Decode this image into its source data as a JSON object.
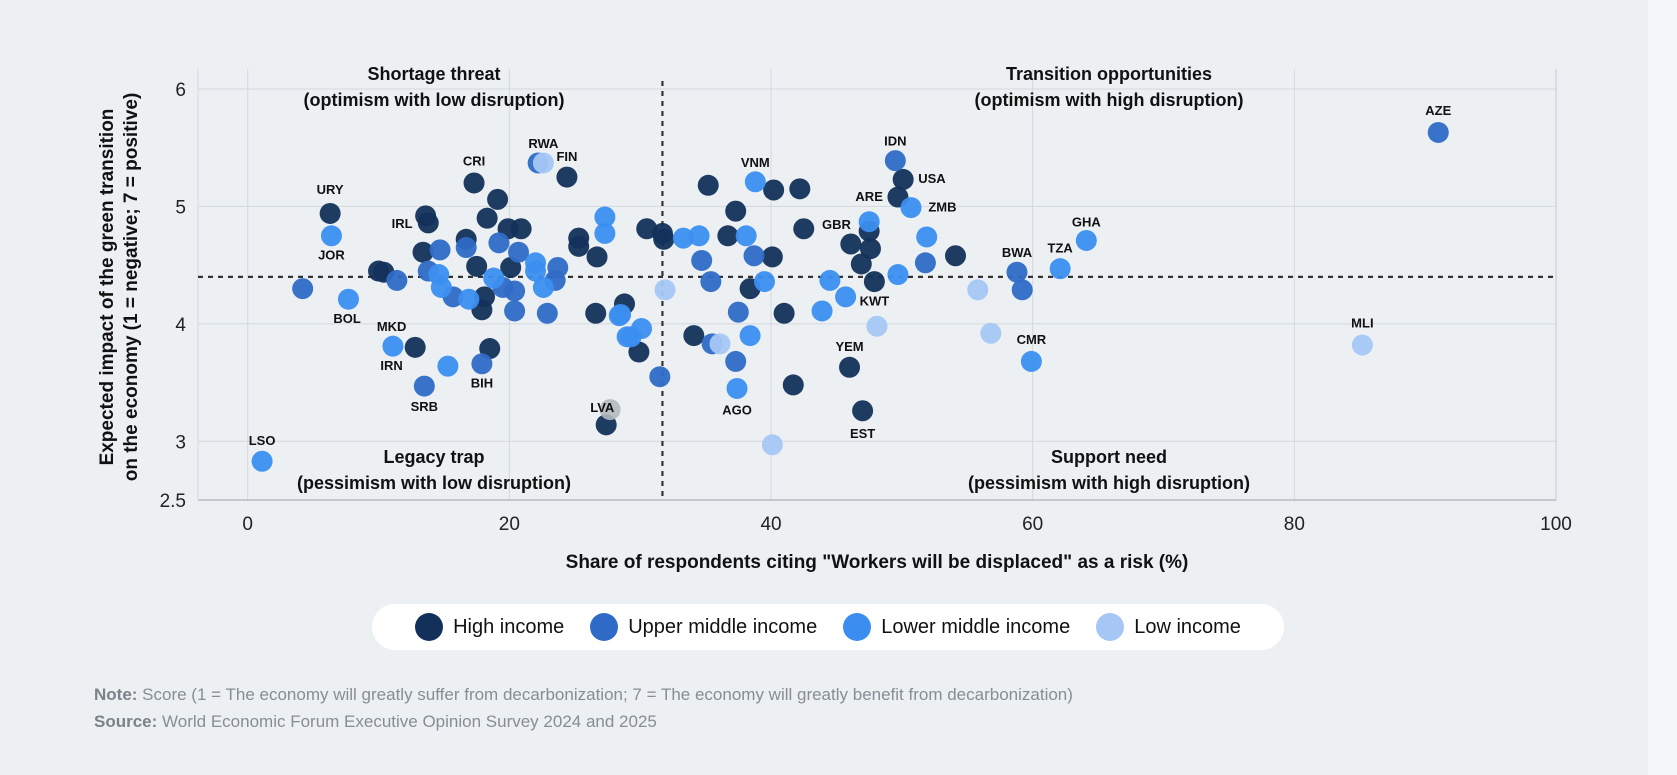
{
  "chart_data": {
    "type": "scatter",
    "xlabel": "Share of respondents citing \"Workers will be displaced\" as a risk (%)",
    "ylabel": [
      "Expected impact of the green transition",
      "on the economy (1 = negative; 7 = positive)"
    ],
    "xlim": [
      -3.8,
      100
    ],
    "ylim": [
      2.5,
      6
    ],
    "xticks": [
      0,
      20,
      40,
      60,
      80,
      100
    ],
    "yticks": [
      2.5,
      3,
      4,
      5,
      6
    ],
    "ytick_labels": [
      "2.5",
      "3",
      "4",
      "5",
      "6"
    ],
    "grid": true,
    "reference_lines": {
      "x": 31.7,
      "y": 4.4
    },
    "quadrants": [
      {
        "title": "Shortage threat",
        "subtitle": "(optimism with low disruption)"
      },
      {
        "title": "Transition opportunities",
        "subtitle": "(optimism with high disruption)"
      },
      {
        "title": "Legacy trap",
        "subtitle": "(pessimism with low disruption)"
      },
      {
        "title": "Support need",
        "subtitle": "(pessimism with high disruption)"
      }
    ],
    "legend_placement": "bottom",
    "series": [
      {
        "name": "High income",
        "color": "#13305a",
        "points": [
          [
            6.3,
            4.94
          ],
          [
            10.4,
            4.44
          ],
          [
            10.0,
            4.45
          ],
          [
            13.6,
            4.92
          ],
          [
            13.8,
            4.86
          ],
          [
            13.4,
            4.61
          ],
          [
            16.7,
            4.72
          ],
          [
            17.3,
            5.2
          ],
          [
            19.1,
            5.06
          ],
          [
            18.3,
            4.9
          ],
          [
            19.9,
            4.81
          ],
          [
            20.9,
            4.81
          ],
          [
            17.5,
            4.49
          ],
          [
            18.1,
            4.23
          ],
          [
            17.9,
            4.12
          ],
          [
            20.1,
            4.48
          ],
          [
            24.4,
            5.25
          ],
          [
            25.3,
            4.73
          ],
          [
            25.3,
            4.66
          ],
          [
            26.7,
            4.57
          ],
          [
            26.6,
            4.09
          ],
          [
            12.8,
            3.8
          ],
          [
            18.5,
            3.79
          ],
          [
            27.4,
            3.14
          ],
          [
            30.5,
            4.81
          ],
          [
            31.7,
            4.77
          ],
          [
            31.8,
            4.72
          ],
          [
            35.2,
            5.18
          ],
          [
            37.3,
            4.96
          ],
          [
            36.7,
            4.75
          ],
          [
            40.1,
            4.57
          ],
          [
            40.2,
            5.14
          ],
          [
            42.2,
            5.15
          ],
          [
            42.5,
            4.81
          ],
          [
            38.4,
            4.3
          ],
          [
            41.0,
            4.09
          ],
          [
            34.1,
            3.9
          ],
          [
            41.7,
            3.48
          ],
          [
            28.8,
            4.17
          ],
          [
            29.9,
            3.76
          ],
          [
            46.1,
            4.68
          ],
          [
            47.5,
            4.79
          ],
          [
            47.6,
            4.64
          ],
          [
            46.9,
            4.51
          ],
          [
            47.9,
            4.36
          ],
          [
            46.0,
            3.63
          ],
          [
            47.0,
            3.26
          ],
          [
            50.1,
            5.23
          ],
          [
            49.7,
            5.08
          ],
          [
            54.1,
            4.58
          ]
        ]
      },
      {
        "name": "Upper middle income",
        "color": "#2f6bc6",
        "points": [
          [
            4.2,
            4.3
          ],
          [
            11.4,
            4.37
          ],
          [
            14.7,
            4.63
          ],
          [
            13.8,
            4.45
          ],
          [
            15.7,
            4.23
          ],
          [
            16.7,
            4.65
          ],
          [
            19.2,
            4.69
          ],
          [
            20.7,
            4.61
          ],
          [
            19.5,
            4.31
          ],
          [
            20.4,
            4.28
          ],
          [
            20.4,
            4.11
          ],
          [
            23.7,
            4.48
          ],
          [
            23.5,
            4.37
          ],
          [
            22.9,
            4.09
          ],
          [
            22.2,
            5.37
          ],
          [
            17.9,
            3.66
          ],
          [
            13.5,
            3.47
          ],
          [
            38.7,
            4.58
          ],
          [
            34.7,
            4.54
          ],
          [
            35.4,
            4.36
          ],
          [
            37.5,
            4.1
          ],
          [
            35.5,
            3.83
          ],
          [
            37.3,
            3.68
          ],
          [
            31.5,
            3.55
          ],
          [
            49.5,
            5.39
          ],
          [
            51.8,
            4.52
          ],
          [
            58.8,
            4.44
          ],
          [
            59.2,
            4.29
          ],
          [
            91.0,
            5.63
          ]
        ]
      },
      {
        "name": "Lower middle income",
        "color": "#3b8ef0",
        "points": [
          [
            6.4,
            4.75
          ],
          [
            7.7,
            4.21
          ],
          [
            1.1,
            2.83
          ],
          [
            14.6,
            4.42
          ],
          [
            14.8,
            4.31
          ],
          [
            16.9,
            4.21
          ],
          [
            18.8,
            4.39
          ],
          [
            22.0,
            4.52
          ],
          [
            22.0,
            4.45
          ],
          [
            22.6,
            4.31
          ],
          [
            27.3,
            4.91
          ],
          [
            27.3,
            4.77
          ],
          [
            28.4,
            4.07
          ],
          [
            29.0,
            3.89
          ],
          [
            11.1,
            3.81
          ],
          [
            15.3,
            3.64
          ],
          [
            33.3,
            4.73
          ],
          [
            34.5,
            4.75
          ],
          [
            38.1,
            4.75
          ],
          [
            38.8,
            5.21
          ],
          [
            39.5,
            4.36
          ],
          [
            38.4,
            3.9
          ],
          [
            37.4,
            3.45
          ],
          [
            28.5,
            4.08
          ],
          [
            30.1,
            3.96
          ],
          [
            29.3,
            3.89
          ],
          [
            44.5,
            4.37
          ],
          [
            45.7,
            4.23
          ],
          [
            43.9,
            4.11
          ],
          [
            47.5,
            4.87
          ],
          [
            50.7,
            4.99
          ],
          [
            51.9,
            4.74
          ],
          [
            49.7,
            4.42
          ],
          [
            59.9,
            3.68
          ],
          [
            64.1,
            4.71
          ],
          [
            62.1,
            4.47
          ]
        ]
      },
      {
        "name": "Low income",
        "color": "#a6c7f5",
        "points": [
          [
            22.6,
            5.37
          ],
          [
            31.9,
            4.29
          ],
          [
            36.1,
            3.83
          ],
          [
            40.1,
            2.97
          ],
          [
            48.1,
            3.98
          ],
          [
            55.8,
            4.29
          ],
          [
            56.8,
            3.92
          ],
          [
            85.2,
            3.82
          ]
        ]
      }
    ],
    "unclassified_points": {
      "color": "#b4b9bf",
      "points": [
        [
          27.7,
          3.27
        ]
      ]
    },
    "annotations": [
      {
        "text": "URY",
        "x": 6.3,
        "y": 5.15
      },
      {
        "text": "JOR",
        "x": 6.4,
        "y": 4.59
      },
      {
        "text": "BOL",
        "x": 7.6,
        "y": 4.05
      },
      {
        "text": "IRL",
        "x": 11.8,
        "y": 4.86
      },
      {
        "text": "MKD",
        "x": 11.0,
        "y": 3.98
      },
      {
        "text": "IRN",
        "x": 11.0,
        "y": 3.65
      },
      {
        "text": "SRB",
        "x": 13.5,
        "y": 3.3
      },
      {
        "text": "BIH",
        "x": 17.9,
        "y": 3.5
      },
      {
        "text": "CRI",
        "x": 17.3,
        "y": 5.39
      },
      {
        "text": "RWA",
        "x": 22.6,
        "y": 5.54
      },
      {
        "text": "FIN",
        "x": 24.4,
        "y": 5.43
      },
      {
        "text": "LVA",
        "x": 27.1,
        "y": 3.29
      },
      {
        "text": "LSO",
        "x": 1.1,
        "y": 3.01
      },
      {
        "text": "VNM",
        "x": 38.8,
        "y": 5.38
      },
      {
        "text": "AGO",
        "x": 37.4,
        "y": 3.27
      },
      {
        "text": "IDN",
        "x": 49.5,
        "y": 5.56
      },
      {
        "text": "USA",
        "x": 52.3,
        "y": 5.24
      },
      {
        "text": "ARE",
        "x": 47.5,
        "y": 5.09
      },
      {
        "text": "ZMB",
        "x": 53.1,
        "y": 5.0
      },
      {
        "text": "GBR",
        "x": 45.0,
        "y": 4.85
      },
      {
        "text": "KWT",
        "x": 47.9,
        "y": 4.2
      },
      {
        "text": "YEM",
        "x": 46.0,
        "y": 3.81
      },
      {
        "text": "EST",
        "x": 47.0,
        "y": 3.07
      },
      {
        "text": "BWA",
        "x": 58.8,
        "y": 4.61
      },
      {
        "text": "TZA",
        "x": 62.1,
        "y": 4.65
      },
      {
        "text": "GHA",
        "x": 64.1,
        "y": 4.87
      },
      {
        "text": "CMR",
        "x": 59.9,
        "y": 3.87
      },
      {
        "text": "MLI",
        "x": 85.2,
        "y": 4.01
      },
      {
        "text": "AZE",
        "x": 91.0,
        "y": 5.82
      }
    ]
  },
  "footer": {
    "note_label": "Note:",
    "note_text": " Score (1 = The economy will greatly suffer from decarbonization; 7 = The economy will greatly benefit from decarbonization)",
    "source_label": "Source:",
    "source_text": " World Economic Forum Executive Opinion Survey 2024 and 2025"
  }
}
